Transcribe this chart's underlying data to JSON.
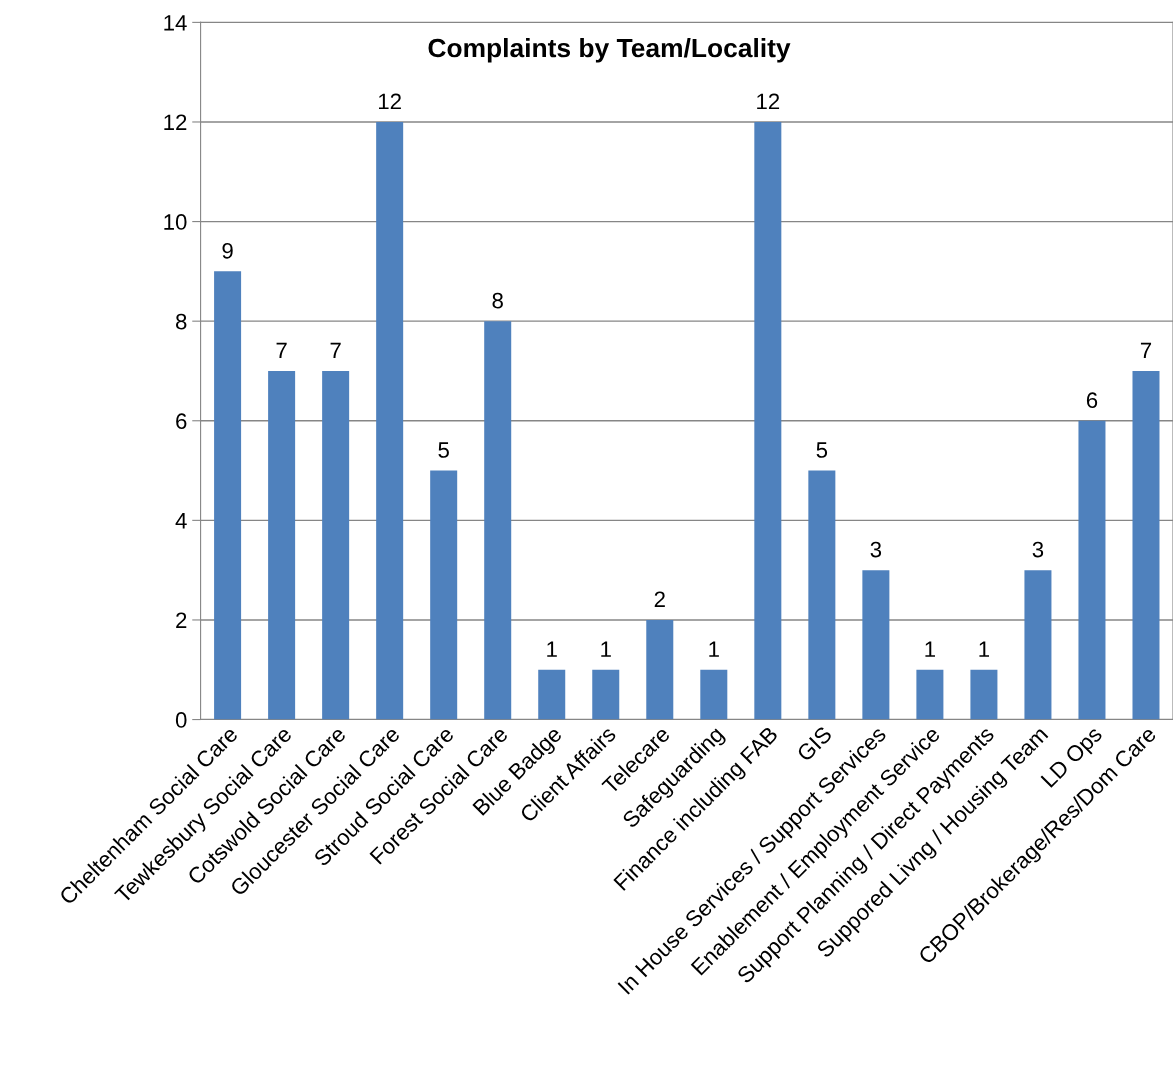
{
  "chart_data": {
    "type": "bar",
    "title": "Complaints by Team/Locality",
    "categories": [
      "Cheltenham Social Care",
      "Tewkesbury Social Care",
      "Cotswold Social Care",
      "Gloucester Social Care",
      "Stroud Social Care",
      "Forest Social Care",
      "Blue Badge",
      "Client Affairs",
      "Telecare",
      "Safeguarding",
      "Finance including FAB",
      "GIS",
      "In House Services / Support Services",
      "Enablement / Employment Service",
      "Support Planning / Direct Payments",
      "Suppored Livng / Housing Team",
      "LD Ops",
      "CBOP/Brokerage/Res/Dom Care"
    ],
    "values": [
      9,
      7,
      7,
      12,
      5,
      8,
      1,
      1,
      2,
      1,
      12,
      5,
      3,
      1,
      1,
      3,
      6,
      7
    ],
    "color": "#4f81bd",
    "ylim": [
      0,
      14
    ],
    "yticks": [
      0,
      2,
      4,
      6,
      8,
      10,
      12,
      14
    ],
    "grid": "y",
    "data_labels": true,
    "legend": false
  }
}
